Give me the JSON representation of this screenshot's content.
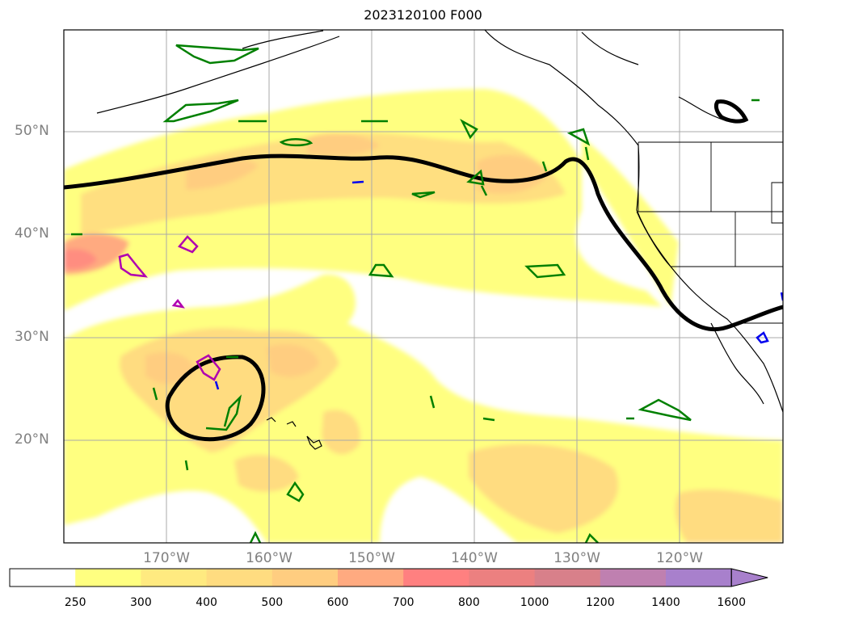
{
  "title": "2023120100 F000",
  "lat_ticks": [
    "50°N",
    "40°N",
    "30°N",
    "20°N"
  ],
  "lon_ticks": [
    "170°W",
    "160°W",
    "150°W",
    "140°W",
    "130°W",
    "120°W"
  ],
  "colorbar": {
    "levels": [
      "250",
      "300",
      "400",
      "500",
      "600",
      "700",
      "800",
      "1000",
      "1200",
      "1400",
      "1600"
    ],
    "colors": [
      "#ffffff",
      "#ffff80",
      "#ffea80",
      "#ffdc80",
      "#ffcd80",
      "#ffaa80",
      "#ff8080",
      "#ec8080",
      "#d8808a",
      "#bf80b0",
      "#a880cc"
    ],
    "extend": "max"
  },
  "map": {
    "projection": "cylindrical",
    "lon_range": [
      -180,
      -110
    ],
    "lat_range": [
      10,
      60
    ],
    "grid": true,
    "fill_color_ramp": "yellow-orange-red-purple",
    "contour_colors": {
      "thick": "#000000",
      "green": "#008000",
      "magenta": "#b000b0",
      "blue": "#0000ee"
    }
  }
}
